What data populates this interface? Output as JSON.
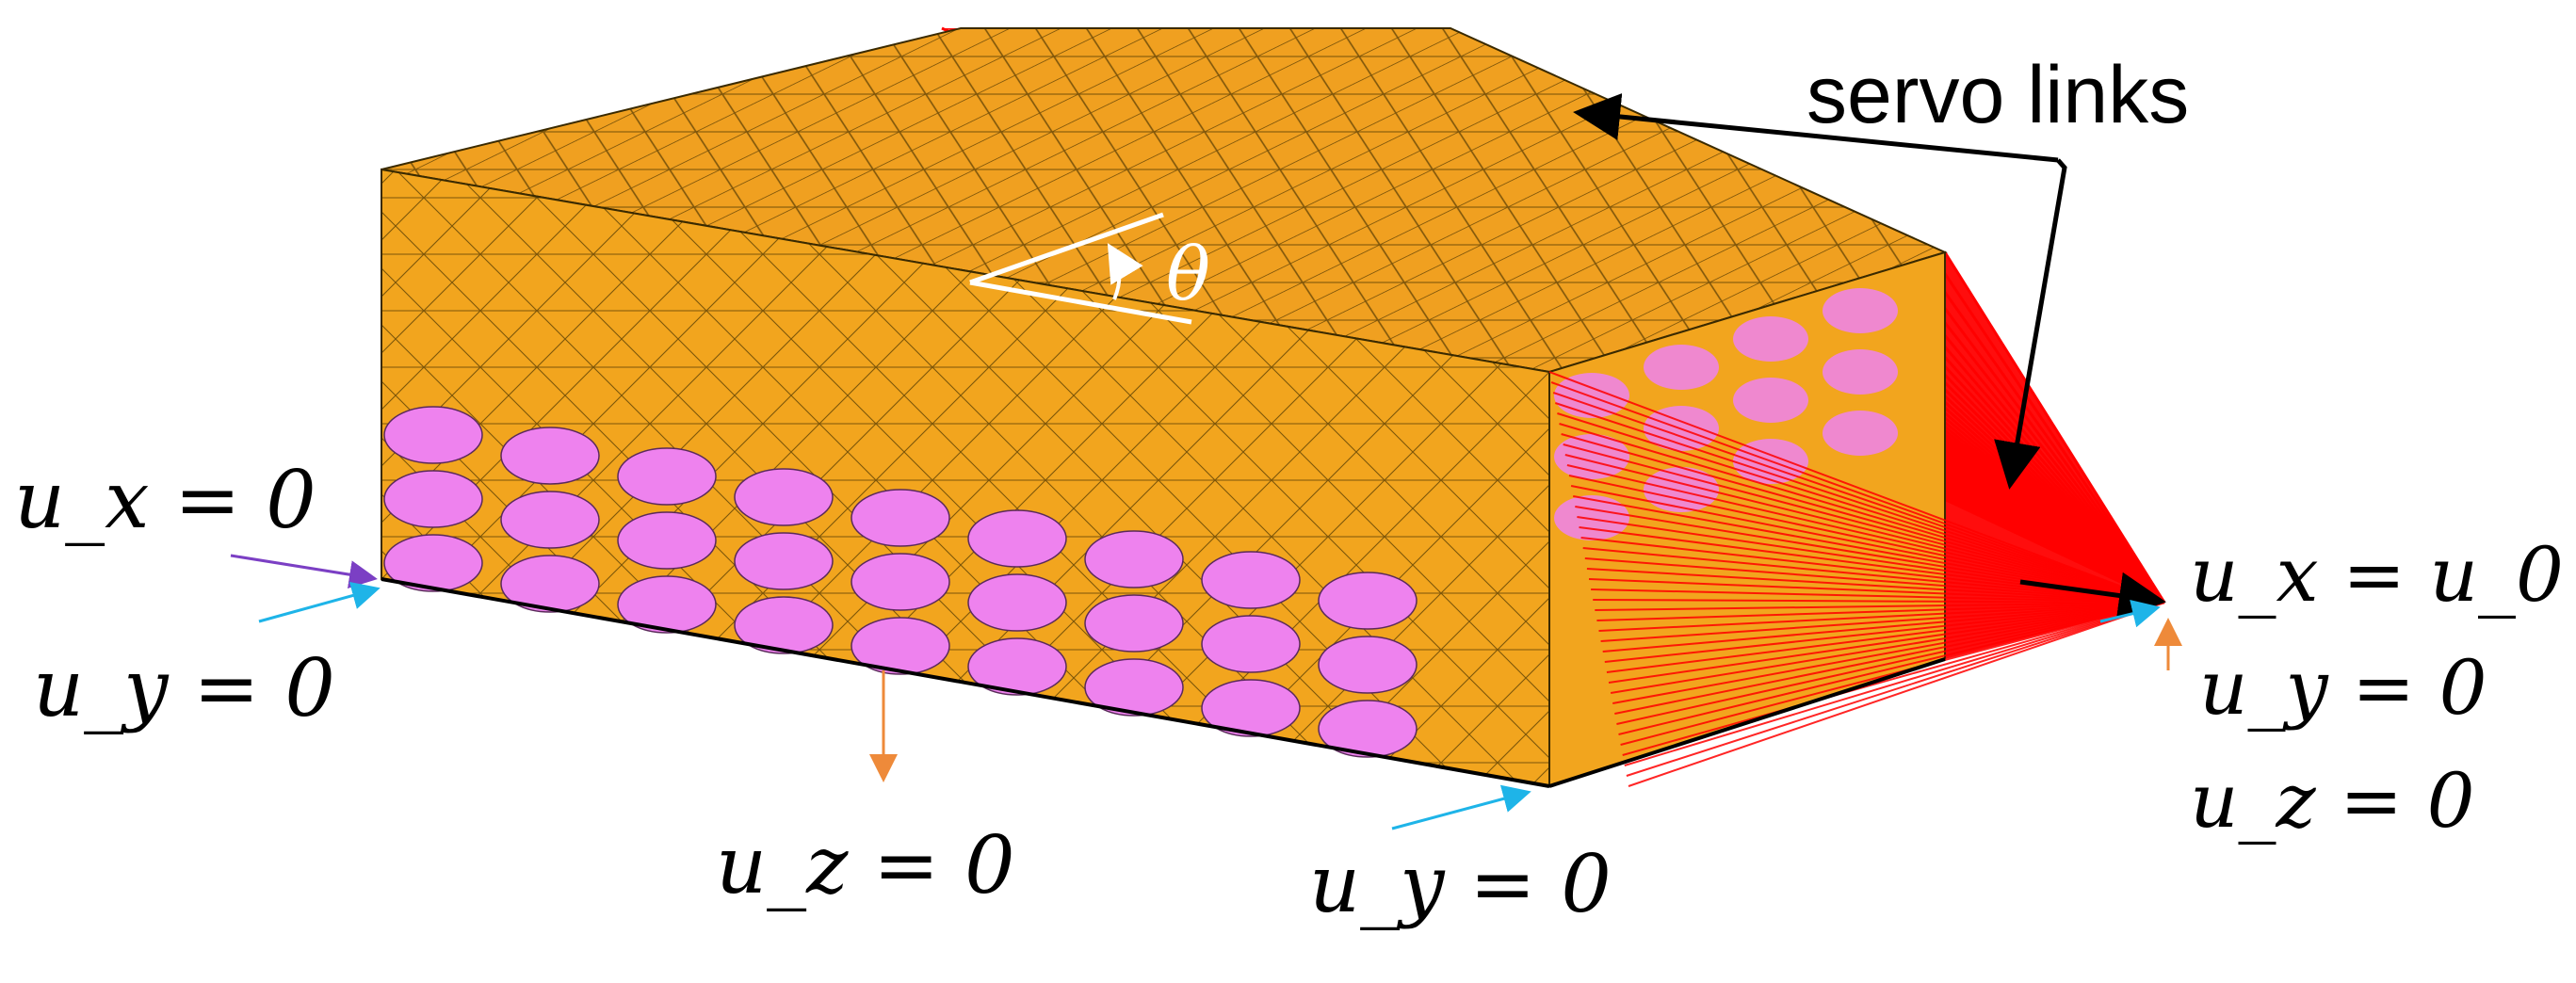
{
  "annotations": {
    "servo_links": "servo links",
    "angle_symbol": "θ",
    "left_ux": "u_x = 0",
    "left_uy": "u_y = 0",
    "bottom_uz": "u_z = 0",
    "bottom_uy": "u_y = 0",
    "right_ux": "u_x = u_0",
    "right_uy": "u_y = 0",
    "right_uz": "u_z = 0"
  },
  "colors": {
    "mesh_fill": "#F2A51E",
    "mesh_top": "#F0A020",
    "mesh_line": "#3a2a00",
    "fiber": "#EE82EE",
    "servo": "#FF0000",
    "arrow_ux": "#7B3FC4",
    "arrow_uy": "#1EB4E8",
    "arrow_uz": "#EE8A3A",
    "arrow_black": "#000000"
  },
  "icons": {
    "rotation": "curved-arrow-icon"
  }
}
